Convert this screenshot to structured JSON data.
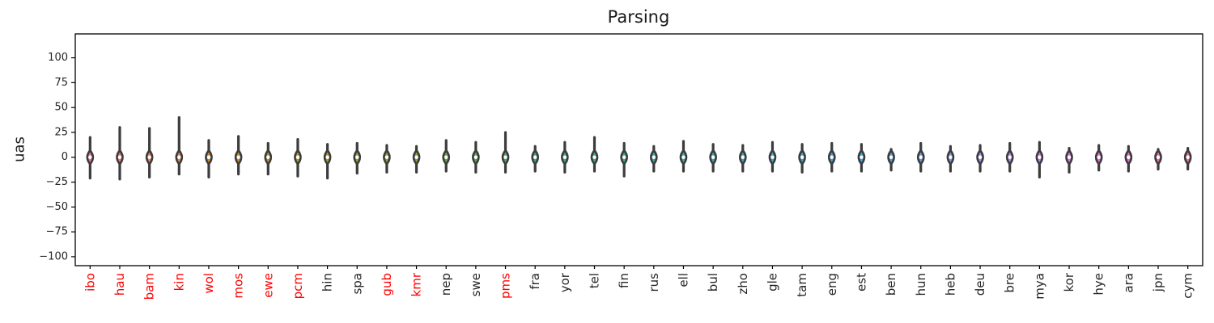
{
  "figure": {
    "title": "Parsing",
    "ylabel": "uas",
    "background": "#ffffff",
    "spine_color": "#000000",
    "title_color": "#1a1a1a",
    "tick_label_color": "#262626",
    "highlight_color": "#ff0000",
    "whisker_color": "#3c3c3c",
    "median_dot_color": "#ffffff"
  },
  "chart_data": {
    "type": "violin",
    "title": "Parsing",
    "xlabel": "",
    "ylabel": "uas",
    "ylim": [
      -109,
      124
    ],
    "yticks": [
      100,
      75,
      50,
      25,
      0,
      -25,
      -50,
      -75,
      -100
    ],
    "grid": false,
    "x_tick_rotation": 90,
    "legend": "none",
    "note": "each violin: median ~0 with white dot, dark whisker line spanning whisker_min..whisker_max, colored lens body at 0",
    "categories": [
      {
        "label": "ibo",
        "label_color": "red",
        "fill": "#f77189",
        "whisker_max": 20,
        "whisker_min": -21,
        "median": 0
      },
      {
        "label": "hau",
        "label_color": "red",
        "fill": "#f07772",
        "whisker_max": 30,
        "whisker_min": -22,
        "median": 0
      },
      {
        "label": "bam",
        "label_color": "red",
        "fill": "#e97e5b",
        "whisker_max": 29,
        "whisker_min": -20,
        "median": 0
      },
      {
        "label": "kin",
        "label_color": "red",
        "fill": "#e28444",
        "whisker_max": 40,
        "whisker_min": -17,
        "median": 0
      },
      {
        "label": "wol",
        "label_color": "red",
        "fill": "#da8a32",
        "whisker_max": 17,
        "whisker_min": -20,
        "median": 0
      },
      {
        "label": "mos",
        "label_color": "red",
        "fill": "#cd8f32",
        "whisker_max": 21,
        "whisker_min": -17,
        "median": 0
      },
      {
        "label": "ewe",
        "label_color": "red",
        "fill": "#c19531",
        "whisker_max": 14,
        "whisker_min": -17,
        "median": 0
      },
      {
        "label": "pcm",
        "label_color": "red",
        "fill": "#b59a31",
        "whisker_max": 18,
        "whisker_min": -19,
        "median": 0
      },
      {
        "label": "hin",
        "label_color": "black",
        "fill": "#a89e31",
        "whisker_max": 13,
        "whisker_min": -21,
        "median": 0
      },
      {
        "label": "spa",
        "label_color": "black",
        "fill": "#9aa231",
        "whisker_max": 14,
        "whisker_min": -16,
        "median": 0
      },
      {
        "label": "gub",
        "label_color": "red",
        "fill": "#8ba631",
        "whisker_max": 12,
        "whisker_min": -15,
        "median": 0
      },
      {
        "label": "kmr",
        "label_color": "red",
        "fill": "#7daa31",
        "whisker_max": 11,
        "whisker_min": -15,
        "median": 0
      },
      {
        "label": "nep",
        "label_color": "black",
        "fill": "#6cac3d",
        "whisker_max": 17,
        "whisker_min": -14,
        "median": 0
      },
      {
        "label": "swe",
        "label_color": "black",
        "fill": "#5aad50",
        "whisker_max": 15,
        "whisker_min": -15,
        "median": 0
      },
      {
        "label": "pms",
        "label_color": "red",
        "fill": "#49ae63",
        "whisker_max": 25,
        "whisker_min": -15,
        "median": 0
      },
      {
        "label": "fra",
        "label_color": "black",
        "fill": "#37b076",
        "whisker_max": 11,
        "whisker_min": -14,
        "median": 0
      },
      {
        "label": "yor",
        "label_color": "black",
        "fill": "#34af83",
        "whisker_max": 15,
        "whisker_min": -15,
        "median": 0
      },
      {
        "label": "tel",
        "label_color": "black",
        "fill": "#34af8e",
        "whisker_max": 20,
        "whisker_min": -14,
        "median": 0
      },
      {
        "label": "fin",
        "label_color": "black",
        "fill": "#35ae99",
        "whisker_max": 14,
        "whisker_min": -19,
        "median": 0
      },
      {
        "label": "rus",
        "label_color": "black",
        "fill": "#36ada4",
        "whisker_max": 11,
        "whisker_min": -14,
        "median": 0
      },
      {
        "label": "ell",
        "label_color": "black",
        "fill": "#37acad",
        "whisker_max": 16,
        "whisker_min": -14,
        "median": 0
      },
      {
        "label": "bul",
        "label_color": "black",
        "fill": "#37aab5",
        "whisker_max": 13,
        "whisker_min": -14,
        "median": 0
      },
      {
        "label": "zho",
        "label_color": "black",
        "fill": "#38a9be",
        "whisker_max": 12,
        "whisker_min": -14,
        "median": 0
      },
      {
        "label": "gle",
        "label_color": "black",
        "fill": "#38a8c7",
        "whisker_max": 15,
        "whisker_min": -14,
        "median": 0
      },
      {
        "label": "tam",
        "label_color": "black",
        "fill": "#39a6d1",
        "whisker_max": 13,
        "whisker_min": -15,
        "median": 0
      },
      {
        "label": "eng",
        "label_color": "black",
        "fill": "#3aa5dc",
        "whisker_max": 14,
        "whisker_min": -14,
        "median": 0
      },
      {
        "label": "est",
        "label_color": "black",
        "fill": "#3ba4e6",
        "whisker_max": 13,
        "whisker_min": -14,
        "median": 0
      },
      {
        "label": "ben",
        "label_color": "black",
        "fill": "#46a1ed",
        "whisker_max": 8,
        "whisker_min": -13,
        "median": 0
      },
      {
        "label": "hun",
        "label_color": "black",
        "fill": "#629bef",
        "whisker_max": 14,
        "whisker_min": -14,
        "median": 0
      },
      {
        "label": "heb",
        "label_color": "black",
        "fill": "#7d94f1",
        "whisker_max": 11,
        "whisker_min": -14,
        "median": 0
      },
      {
        "label": "deu",
        "label_color": "black",
        "fill": "#998ef3",
        "whisker_max": 12,
        "whisker_min": -14,
        "median": 0
      },
      {
        "label": "bre",
        "label_color": "black",
        "fill": "#b185f0",
        "whisker_max": 14,
        "whisker_min": -14,
        "median": 0
      },
      {
        "label": "mya",
        "label_color": "black",
        "fill": "#c67aea",
        "whisker_max": 15,
        "whisker_min": -20,
        "median": 0
      },
      {
        "label": "kor",
        "label_color": "black",
        "fill": "#db6fe4",
        "whisker_max": 9,
        "whisker_min": -15,
        "median": 0
      },
      {
        "label": "hye",
        "label_color": "black",
        "fill": "#f163de",
        "whisker_max": 12,
        "whisker_min": -13,
        "median": 0
      },
      {
        "label": "ara",
        "label_color": "black",
        "fill": "#f564cb",
        "whisker_max": 11,
        "whisker_min": -14,
        "median": 0
      },
      {
        "label": "jpn",
        "label_color": "black",
        "fill": "#f669b5",
        "whisker_max": 8,
        "whisker_min": -12,
        "median": 0
      },
      {
        "label": "cym",
        "label_color": "black",
        "fill": "#f66d9f",
        "whisker_max": 9,
        "whisker_min": -12,
        "median": 0
      }
    ]
  }
}
